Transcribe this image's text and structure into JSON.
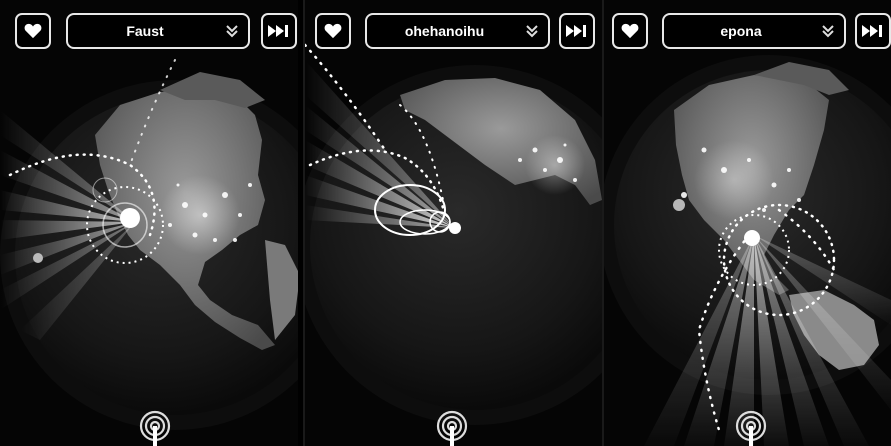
{
  "panels": [
    {
      "id": "panel-1",
      "station_name": "Faust",
      "icons": {
        "favorite": "heart-icon",
        "dropdown": "double-chevron-down-icon",
        "skip": "skip-forward-icon",
        "broadcast": "broadcast-icon"
      }
    },
    {
      "id": "panel-2",
      "station_name": "ohehanoihu",
      "icons": {
        "favorite": "heart-icon",
        "dropdown": "double-chevron-down-icon",
        "skip": "skip-forward-icon",
        "broadcast": "broadcast-icon"
      }
    },
    {
      "id": "panel-3",
      "station_name": "epona",
      "icons": {
        "favorite": "heart-icon",
        "dropdown": "double-chevron-down-icon",
        "skip": "skip-forward-icon",
        "broadcast": "broadcast-icon"
      }
    }
  ],
  "colors": {
    "background": "#000000",
    "outline": "#e8e8e8",
    "text": "#ffffff",
    "globe_land": "#6e6e6e",
    "city_lights": "#ffffff"
  }
}
